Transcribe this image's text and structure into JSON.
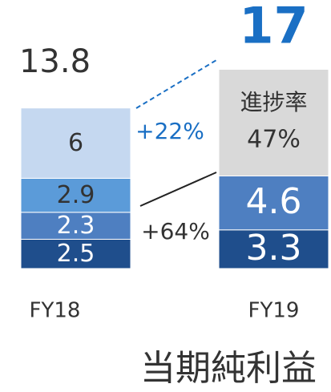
{
  "chart_data": {
    "type": "stacked_bar",
    "title": "当期純利益",
    "categories": [
      "FY18",
      "FY19"
    ],
    "series": [
      {
        "color": "#1f4e8c",
        "label_color": "#ffffff",
        "values": [
          2.5,
          3.3
        ]
      },
      {
        "color": "#4e7fc1",
        "label_color": "#ffffff",
        "values": [
          2.3,
          4.6
        ]
      },
      {
        "color": "#5b9bd9",
        "label_color": "#333333",
        "values": [
          2.9,
          null
        ]
      },
      {
        "color": "#c5d8f0",
        "label_color": "#333333",
        "values": [
          6,
          null
        ]
      },
      {
        "color": "#d9d9d9",
        "label_color": "#333333",
        "values": [
          null,
          9.1
        ]
      }
    ],
    "totals": [
      13.8,
      17
    ],
    "progress_labels": [
      "進捗率",
      "47%"
    ],
    "annotations": [
      "+22%",
      "+64%"
    ]
  }
}
